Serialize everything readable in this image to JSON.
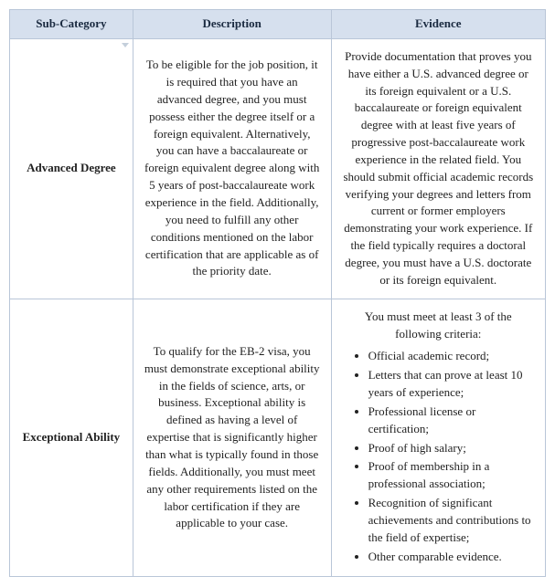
{
  "headers": {
    "subcat": "Sub-Category",
    "desc": "Description",
    "evidence": "Evidence"
  },
  "rows": [
    {
      "subcat": "Advanced Degree",
      "desc": "To be eligible for the job position, it is required that you have an advanced degree, and you must possess either the degree itself or a foreign equivalent. Alternatively, you can have a baccalaureate or foreign equivalent degree along with 5 years of post-baccalaureate work experience in the field. Additionally, you need to fulfill any other conditions mentioned on the labor certification that are applicable as of the priority date.",
      "evidence_text": "Provide documentation that proves you have either a U.S. advanced degree or its foreign equivalent or a U.S. baccalaureate or foreign equivalent degree with at least five years of progressive post-baccalaureate work experience in the related field. You should submit official academic records verifying your degrees and letters from current or former employers demonstrating your work experience. If the field typically requires a doctoral degree, you must have a U.S. doctorate or its foreign equivalent.",
      "has_list": false
    },
    {
      "subcat": "Exceptional Ability",
      "desc": "To qualify for the EB-2 visa, you must demonstrate exceptional ability in the fields of science, arts, or business. Exceptional ability is defined as having a level of expertise that is significantly higher than what is typically found in those fields. Additionally, you must meet any other requirements listed on the labor certification if they are applicable to your case.",
      "evidence_intro": "You must meet at least 3 of the following criteria:",
      "has_list": true,
      "evidence_list": [
        "Official academic record;",
        "Letters that can prove at least 10 years of experience;",
        "Professional license or certification;",
        "Proof of high salary;",
        "Proof of membership in a professional association;",
        "Recognition of significant achievements and contributions to the field of expertise;",
        "Other comparable evidence."
      ]
    }
  ]
}
